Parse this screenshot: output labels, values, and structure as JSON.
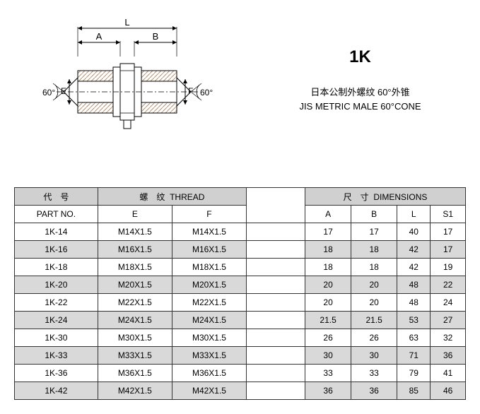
{
  "header": {
    "model_code": "1K",
    "desc_cn": "日本公制外螺纹 60°外锥",
    "desc_en": "JIS METRIC MALE 60°CONE"
  },
  "diagram": {
    "dim_L": "L",
    "dim_A": "A",
    "dim_B": "B",
    "dim_E": "E",
    "dim_F": "F",
    "angle_left": "60°",
    "angle_right": "60°",
    "hatch_color": "#c38f5b",
    "line_color": "#000000"
  },
  "table": {
    "group_headers": {
      "part_no_cn": "代　号",
      "thread_cn": "螺　纹",
      "thread_en": "THREAD",
      "dim_cn": "尺　寸",
      "dim_en": "DIMENSIONS"
    },
    "sub_headers": {
      "part_no": "PART  NO.",
      "E": "E",
      "F": "F",
      "A": "A",
      "B": "B",
      "L": "L",
      "S1": "S1"
    },
    "rows": [
      {
        "pn": "1K-14",
        "E": "M14X1.5",
        "F": "M14X1.5",
        "A": "17",
        "B": "17",
        "L": "40",
        "S1": "17"
      },
      {
        "pn": "1K-16",
        "E": "M16X1.5",
        "F": "M16X1.5",
        "A": "18",
        "B": "18",
        "L": "42",
        "S1": "17"
      },
      {
        "pn": "1K-18",
        "E": "M18X1.5",
        "F": "M18X1.5",
        "A": "18",
        "B": "18",
        "L": "42",
        "S1": "19"
      },
      {
        "pn": "1K-20",
        "E": "M20X1.5",
        "F": "M20X1.5",
        "A": "20",
        "B": "20",
        "L": "48",
        "S1": "22"
      },
      {
        "pn": "1K-22",
        "E": "M22X1.5",
        "F": "M22X1.5",
        "A": "20",
        "B": "20",
        "L": "48",
        "S1": "24"
      },
      {
        "pn": "1K-24",
        "E": "M24X1.5",
        "F": "M24X1.5",
        "A": "21.5",
        "B": "21.5",
        "L": "53",
        "S1": "27"
      },
      {
        "pn": "1K-30",
        "E": "M30X1.5",
        "F": "M30X1.5",
        "A": "26",
        "B": "26",
        "L": "63",
        "S1": "32"
      },
      {
        "pn": "1K-33",
        "E": "M33X1.5",
        "F": "M33X1.5",
        "A": "30",
        "B": "30",
        "L": "71",
        "S1": "36"
      },
      {
        "pn": "1K-36",
        "E": "M36X1.5",
        "F": "M36X1.5",
        "A": "33",
        "B": "33",
        "L": "79",
        "S1": "41"
      },
      {
        "pn": "1K-42",
        "E": "M42X1.5",
        "F": "M42X1.5",
        "A": "36",
        "B": "36",
        "L": "85",
        "S1": "46"
      }
    ]
  }
}
